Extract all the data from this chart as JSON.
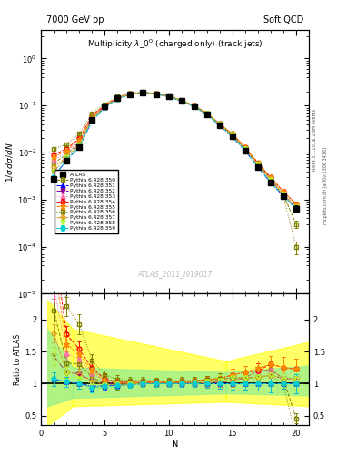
{
  "title_left": "7000 GeV pp",
  "title_right": "Soft QCD",
  "plot_title": "Multiplicity $\\lambda\\_0^0$ (charged only) (track jets)",
  "watermark": "ATLAS_2011_I919017",
  "rivet_text": "Rivet 3.1.10, ≥ 2.9M events",
  "mcplots_text": "mcplots.cern.ch [arXiv:1306.3436]",
  "series": [
    {
      "label": "ATLAS",
      "color": "#000000",
      "marker": "s",
      "ms": 4,
      "ls": "none",
      "filled": true,
      "x": [
        1,
        2,
        3,
        4,
        5,
        6,
        7,
        8,
        9,
        10,
        11,
        12,
        13,
        14,
        15,
        16,
        17,
        18,
        19,
        20
      ],
      "y": [
        0.0028,
        0.0068,
        0.013,
        0.05,
        0.095,
        0.145,
        0.175,
        0.185,
        0.175,
        0.155,
        0.125,
        0.095,
        0.065,
        0.038,
        0.022,
        0.011,
        0.005,
        0.0023,
        0.0012,
        0.00065
      ],
      "yerr": [
        0.0003,
        0.0005,
        0.001,
        0.004,
        0.007,
        0.009,
        0.01,
        0.01,
        0.009,
        0.008,
        0.007,
        0.005,
        0.004,
        0.003,
        0.0015,
        0.001,
        0.0005,
        0.0003,
        0.0001,
        0.0001
      ]
    },
    {
      "label": "Pythia 6.428 350",
      "color": "#808000",
      "marker": "s",
      "ms": 3.5,
      "ls": "--",
      "filled": false,
      "x": [
        1,
        2,
        3,
        4,
        5,
        6,
        7,
        8,
        9,
        10,
        11,
        12,
        13,
        14,
        15,
        16,
        17,
        18,
        19,
        20
      ],
      "y": [
        0.006,
        0.009,
        0.017,
        0.055,
        0.095,
        0.14,
        0.175,
        0.188,
        0.178,
        0.158,
        0.128,
        0.098,
        0.068,
        0.04,
        0.024,
        0.012,
        0.006,
        0.0028,
        0.0013,
        0.0003
      ],
      "yerr": [
        0.0005,
        0.0007,
        0.001,
        0.004,
        0.006,
        0.008,
        0.009,
        0.009,
        0.009,
        0.008,
        0.006,
        0.005,
        0.004,
        0.003,
        0.002,
        0.001,
        0.0006,
        0.0003,
        0.0001,
        5e-05
      ]
    },
    {
      "label": "Pythia 6.428 351",
      "color": "#0000FF",
      "marker": "^",
      "ms": 3.5,
      "ls": "-.",
      "filled": true,
      "x": [
        1,
        2,
        3,
        4,
        5,
        6,
        7,
        8,
        9,
        10,
        11,
        12,
        13,
        14,
        15,
        16,
        17,
        18,
        19,
        20
      ],
      "y": [
        0.003,
        0.007,
        0.013,
        0.048,
        0.092,
        0.142,
        0.173,
        0.185,
        0.175,
        0.155,
        0.125,
        0.095,
        0.065,
        0.038,
        0.022,
        0.011,
        0.005,
        0.0023,
        0.0012,
        0.00065
      ],
      "yerr": [
        0.0003,
        0.0005,
        0.001,
        0.004,
        0.006,
        0.008,
        0.009,
        0.009,
        0.009,
        0.008,
        0.006,
        0.005,
        0.004,
        0.003,
        0.002,
        0.001,
        0.0005,
        0.0003,
        0.0001,
        0.0001
      ]
    },
    {
      "label": "Pythia 6.428 352",
      "color": "#8B008B",
      "marker": "v",
      "ms": 3.5,
      "ls": "-.",
      "filled": true,
      "x": [
        1,
        2,
        3,
        4,
        5,
        6,
        7,
        8,
        9,
        10,
        11,
        12,
        13,
        14,
        15,
        16,
        17,
        18,
        19,
        20
      ],
      "y": [
        0.004,
        0.008,
        0.015,
        0.052,
        0.095,
        0.143,
        0.174,
        0.186,
        0.176,
        0.156,
        0.126,
        0.096,
        0.066,
        0.039,
        0.023,
        0.012,
        0.0055,
        0.0026,
        0.0013,
        0.0007
      ],
      "yerr": [
        0.0004,
        0.0006,
        0.001,
        0.004,
        0.006,
        0.008,
        0.009,
        0.009,
        0.009,
        0.008,
        0.006,
        0.005,
        0.004,
        0.003,
        0.002,
        0.001,
        0.0005,
        0.0003,
        0.0001,
        0.0001
      ]
    },
    {
      "label": "Pythia 6.428 353",
      "color": "#FF69B4",
      "marker": "^",
      "ms": 3.5,
      "ls": ":",
      "filled": false,
      "x": [
        1,
        2,
        3,
        4,
        5,
        6,
        7,
        8,
        9,
        10,
        11,
        12,
        13,
        14,
        15,
        16,
        17,
        18,
        19,
        20
      ],
      "y": [
        0.007,
        0.01,
        0.018,
        0.058,
        0.098,
        0.145,
        0.176,
        0.188,
        0.178,
        0.158,
        0.128,
        0.097,
        0.067,
        0.04,
        0.024,
        0.012,
        0.006,
        0.0028,
        0.0013,
        0.0007
      ],
      "yerr": [
        0.0006,
        0.0008,
        0.0015,
        0.005,
        0.007,
        0.009,
        0.01,
        0.01,
        0.009,
        0.008,
        0.007,
        0.005,
        0.004,
        0.003,
        0.002,
        0.001,
        0.0006,
        0.0003,
        0.0001,
        0.0001
      ]
    },
    {
      "label": "Pythia 6.428 354",
      "color": "#FF0000",
      "marker": "o",
      "ms": 3.5,
      "ls": "--",
      "filled": false,
      "x": [
        1,
        2,
        3,
        4,
        5,
        6,
        7,
        8,
        9,
        10,
        11,
        12,
        13,
        14,
        15,
        16,
        17,
        18,
        19,
        20
      ],
      "y": [
        0.009,
        0.012,
        0.02,
        0.062,
        0.102,
        0.149,
        0.178,
        0.19,
        0.18,
        0.159,
        0.129,
        0.099,
        0.069,
        0.041,
        0.025,
        0.013,
        0.006,
        0.003,
        0.0015,
        0.0008
      ],
      "yerr": [
        0.0007,
        0.0009,
        0.0016,
        0.005,
        0.007,
        0.009,
        0.01,
        0.01,
        0.009,
        0.008,
        0.007,
        0.005,
        0.004,
        0.003,
        0.002,
        0.001,
        0.0006,
        0.0003,
        0.0002,
        0.0001
      ]
    },
    {
      "label": "Pythia 6.428 355",
      "color": "#FF8C00",
      "marker": "*",
      "ms": 4.5,
      "ls": "--",
      "filled": true,
      "x": [
        1,
        2,
        3,
        4,
        5,
        6,
        7,
        8,
        9,
        10,
        11,
        12,
        13,
        14,
        15,
        16,
        17,
        18,
        19,
        20
      ],
      "y": [
        0.008,
        0.011,
        0.019,
        0.06,
        0.1,
        0.147,
        0.177,
        0.189,
        0.179,
        0.159,
        0.129,
        0.099,
        0.069,
        0.041,
        0.025,
        0.013,
        0.0062,
        0.003,
        0.0015,
        0.0008
      ],
      "yerr": [
        0.0006,
        0.0008,
        0.0015,
        0.005,
        0.007,
        0.009,
        0.01,
        0.01,
        0.009,
        0.008,
        0.007,
        0.005,
        0.004,
        0.003,
        0.002,
        0.001,
        0.0006,
        0.0003,
        0.0002,
        0.0001
      ]
    },
    {
      "label": "Pythia 6.428 356",
      "color": "#808000",
      "marker": "s",
      "ms": 3.5,
      "ls": ":",
      "filled": false,
      "x": [
        1,
        2,
        3,
        4,
        5,
        6,
        7,
        8,
        9,
        10,
        11,
        12,
        13,
        14,
        15,
        16,
        17,
        18,
        19,
        20
      ],
      "y": [
        0.012,
        0.015,
        0.025,
        0.068,
        0.108,
        0.155,
        0.184,
        0.195,
        0.183,
        0.162,
        0.131,
        0.1,
        0.069,
        0.041,
        0.024,
        0.012,
        0.0055,
        0.0026,
        0.0012,
        0.0001
      ],
      "yerr": [
        0.001,
        0.001,
        0.002,
        0.005,
        0.007,
        0.009,
        0.01,
        0.01,
        0.009,
        0.008,
        0.007,
        0.005,
        0.004,
        0.003,
        0.002,
        0.001,
        0.0005,
        0.0003,
        0.0001,
        3e-05
      ]
    },
    {
      "label": "Pythia 6.428 357",
      "color": "#DAA520",
      "marker": "D",
      "ms": 3,
      "ls": "--",
      "filled": false,
      "x": [
        1,
        2,
        3,
        4,
        5,
        6,
        7,
        8,
        9,
        10,
        11,
        12,
        13,
        14,
        15,
        16,
        17,
        18,
        19,
        20
      ],
      "y": [
        0.005,
        0.008,
        0.015,
        0.052,
        0.094,
        0.143,
        0.174,
        0.186,
        0.176,
        0.156,
        0.126,
        0.096,
        0.066,
        0.039,
        0.023,
        0.012,
        0.0055,
        0.0026,
        0.0013,
        0.0007
      ],
      "yerr": [
        0.0004,
        0.0006,
        0.001,
        0.004,
        0.006,
        0.008,
        0.009,
        0.009,
        0.009,
        0.008,
        0.006,
        0.005,
        0.004,
        0.003,
        0.002,
        0.001,
        0.0005,
        0.0003,
        0.0001,
        0.0001
      ]
    },
    {
      "label": "Pythia 6.428 358",
      "color": "#ADFF2F",
      "marker": "v",
      "ms": 3.5,
      "ls": ":",
      "filled": false,
      "x": [
        1,
        2,
        3,
        4,
        5,
        6,
        7,
        8,
        9,
        10,
        11,
        12,
        13,
        14,
        15,
        16,
        17,
        18,
        19,
        20
      ],
      "y": [
        0.004,
        0.008,
        0.014,
        0.05,
        0.093,
        0.143,
        0.174,
        0.186,
        0.176,
        0.156,
        0.126,
        0.097,
        0.067,
        0.04,
        0.024,
        0.012,
        0.0055,
        0.0026,
        0.0013,
        0.0007
      ],
      "yerr": [
        0.0004,
        0.0006,
        0.001,
        0.004,
        0.006,
        0.008,
        0.009,
        0.009,
        0.009,
        0.008,
        0.006,
        0.005,
        0.004,
        0.003,
        0.002,
        0.001,
        0.0005,
        0.0003,
        0.0001,
        0.0001
      ]
    },
    {
      "label": "Pythia 6.428 359",
      "color": "#00CED1",
      "marker": "o",
      "ms": 3.5,
      "ls": "--",
      "filled": true,
      "x": [
        1,
        2,
        3,
        4,
        5,
        6,
        7,
        8,
        9,
        10,
        11,
        12,
        13,
        14,
        15,
        16,
        17,
        18,
        19,
        20
      ],
      "y": [
        0.003,
        0.007,
        0.013,
        0.047,
        0.091,
        0.141,
        0.172,
        0.185,
        0.175,
        0.155,
        0.125,
        0.095,
        0.065,
        0.038,
        0.022,
        0.011,
        0.005,
        0.0023,
        0.0012,
        0.00065
      ],
      "yerr": [
        0.0003,
        0.0005,
        0.001,
        0.004,
        0.006,
        0.008,
        0.009,
        0.009,
        0.009,
        0.008,
        0.006,
        0.005,
        0.004,
        0.003,
        0.002,
        0.001,
        0.0005,
        0.0003,
        0.0001,
        0.0001
      ]
    }
  ]
}
